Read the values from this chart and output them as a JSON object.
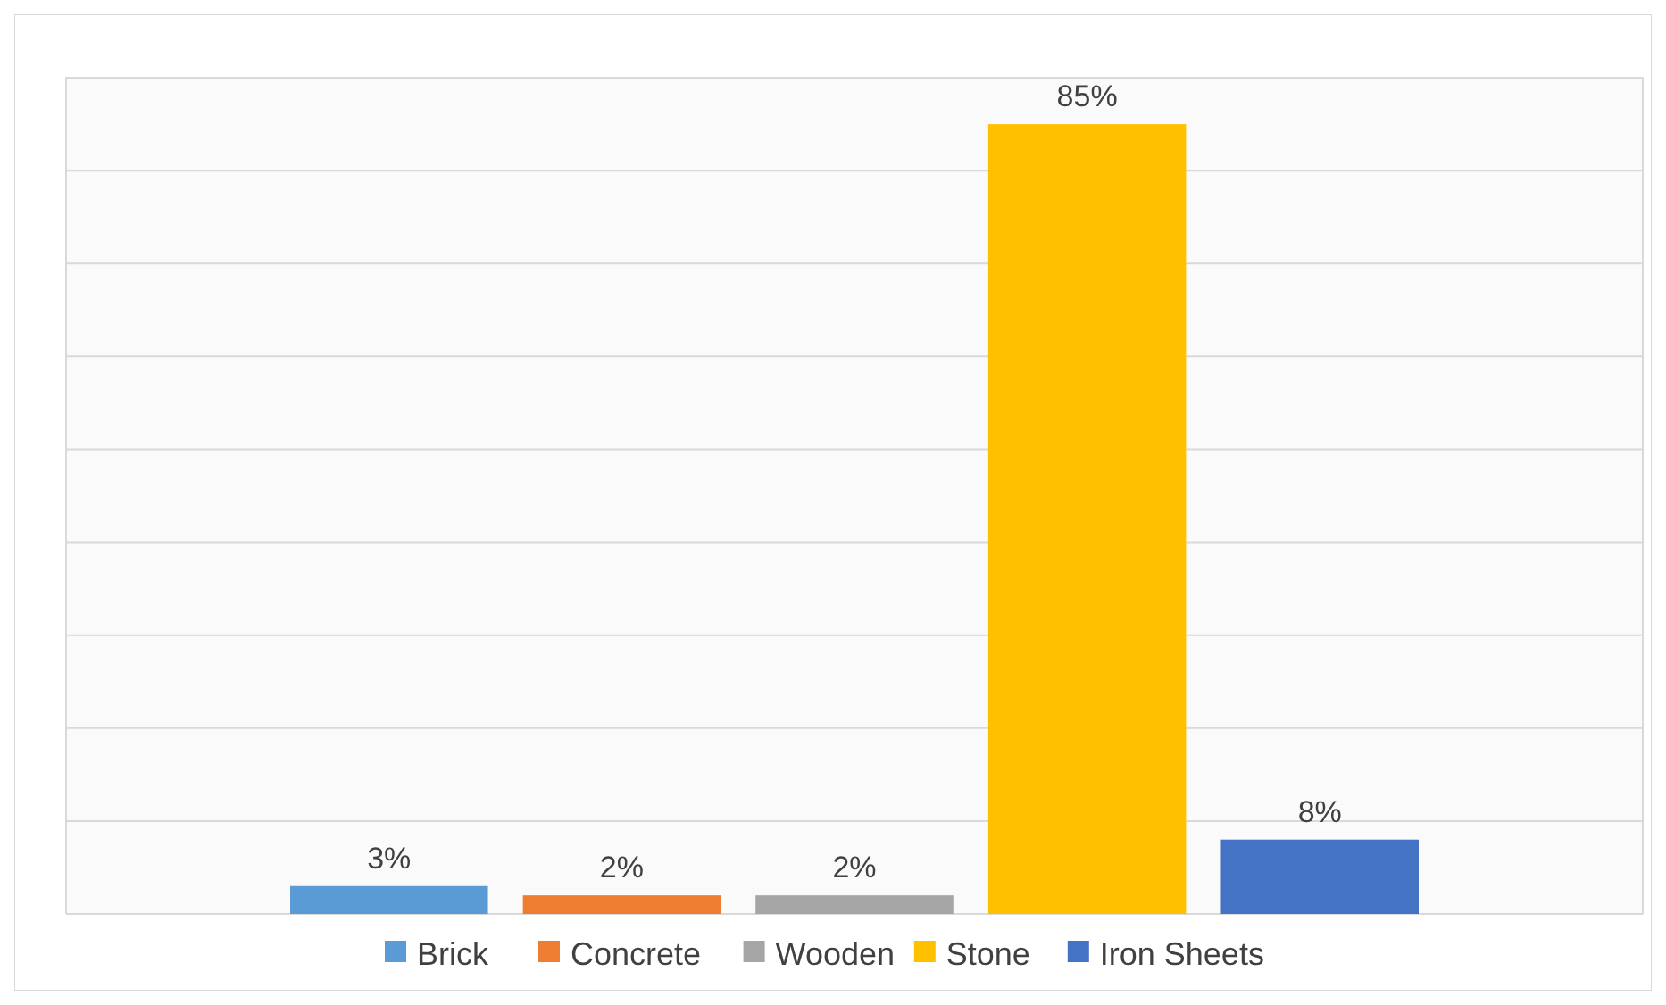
{
  "chart_data": {
    "type": "bar",
    "categories": [
      null
    ],
    "series": [
      {
        "name": "Brick",
        "color": "#5b9bd5",
        "values": [
          3
        ],
        "value_labels": [
          "3%"
        ]
      },
      {
        "name": "Concrete",
        "color": "#ed7d31",
        "values": [
          2
        ],
        "value_labels": [
          "2%"
        ]
      },
      {
        "name": "Wooden",
        "color": "#a5a5a5",
        "values": [
          2
        ],
        "value_labels": [
          "2%"
        ]
      },
      {
        "name": "Stone",
        "color": "#ffc000",
        "values": [
          85
        ],
        "value_labels": [
          "85%"
        ]
      },
      {
        "name": "Iron Sheets",
        "color": "#4472c4",
        "values": [
          8
        ],
        "value_labels": [
          "8%"
        ]
      }
    ],
    "grid": "y",
    "legend": "bottom"
  }
}
